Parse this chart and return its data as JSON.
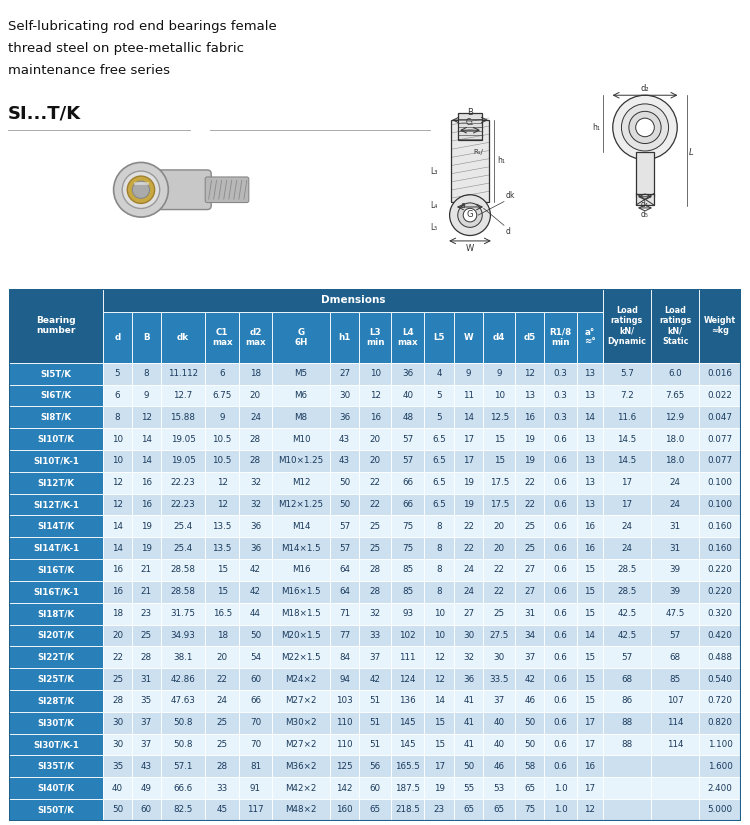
{
  "title_lines": [
    "Self-lubricating rod end bearings female",
    "thread steel on ptee-metallic fabric",
    "maintenance free series"
  ],
  "title_bold": "SI...T/K",
  "header_bg": "#1f5f8b",
  "header_fg": "#ffffff",
  "subheader_bg": "#2980b9",
  "row_even_bg": "#cce0f0",
  "row_odd_bg": "#e8f4fb",
  "text_color": "#1a3a5c",
  "dimensions_span_label": "Dmensions",
  "col_headers": [
    "Bearing\nnumber",
    "d",
    "B",
    "dk",
    "C1\nmax",
    "d2\nmax",
    "G\n6H",
    "h1",
    "L3\nmin",
    "L4\nmax",
    "L5",
    "W",
    "d4",
    "d5",
    "R1/8\nmin",
    "a°\n≈°",
    "Load\nratings\nkN/\nDynamic",
    "Load\nratings\nkN/\nStatic",
    "Weight\n≈kg"
  ],
  "rows": [
    [
      "SI5T/K",
      "5",
      "8",
      "11.112",
      "6",
      "18",
      "M5",
      "27",
      "10",
      "36",
      "4",
      "9",
      "9",
      "12",
      "0.3",
      "13",
      "5.7",
      "6.0",
      "0.016"
    ],
    [
      "SI6T/K",
      "6",
      "9",
      "12.7",
      "6.75",
      "20",
      "M6",
      "30",
      "12",
      "40",
      "5",
      "11",
      "10",
      "13",
      "0.3",
      "13",
      "7.2",
      "7.65",
      "0.022"
    ],
    [
      "SI8T/K",
      "8",
      "12",
      "15.88",
      "9",
      "24",
      "M8",
      "36",
      "16",
      "48",
      "5",
      "14",
      "12.5",
      "16",
      "0.3",
      "14",
      "11.6",
      "12.9",
      "0.047"
    ],
    [
      "SI10T/K",
      "10",
      "14",
      "19.05",
      "10.5",
      "28",
      "M10",
      "43",
      "20",
      "57",
      "6.5",
      "17",
      "15",
      "19",
      "0.6",
      "13",
      "14.5",
      "18.0",
      "0.077"
    ],
    [
      "SI10T/K-1",
      "10",
      "14",
      "19.05",
      "10.5",
      "28",
      "M10×1.25",
      "43",
      "20",
      "57",
      "6.5",
      "17",
      "15",
      "19",
      "0.6",
      "13",
      "14.5",
      "18.0",
      "0.077"
    ],
    [
      "SI12T/K",
      "12",
      "16",
      "22.23",
      "12",
      "32",
      "M12",
      "50",
      "22",
      "66",
      "6.5",
      "19",
      "17.5",
      "22",
      "0.6",
      "13",
      "17",
      "24",
      "0.100"
    ],
    [
      "SI12T/K-1",
      "12",
      "16",
      "22.23",
      "12",
      "32",
      "M12×1.25",
      "50",
      "22",
      "66",
      "6.5",
      "19",
      "17.5",
      "22",
      "0.6",
      "13",
      "17",
      "24",
      "0.100"
    ],
    [
      "SI14T/K",
      "14",
      "19",
      "25.4",
      "13.5",
      "36",
      "M14",
      "57",
      "25",
      "75",
      "8",
      "22",
      "20",
      "25",
      "0.6",
      "16",
      "24",
      "31",
      "0.160"
    ],
    [
      "SI14T/K-1",
      "14",
      "19",
      "25.4",
      "13.5",
      "36",
      "M14×1.5",
      "57",
      "25",
      "75",
      "8",
      "22",
      "20",
      "25",
      "0.6",
      "16",
      "24",
      "31",
      "0.160"
    ],
    [
      "SI16T/K",
      "16",
      "21",
      "28.58",
      "15",
      "42",
      "M16",
      "64",
      "28",
      "85",
      "8",
      "24",
      "22",
      "27",
      "0.6",
      "15",
      "28.5",
      "39",
      "0.220"
    ],
    [
      "SI16T/K-1",
      "16",
      "21",
      "28.58",
      "15",
      "42",
      "M16×1.5",
      "64",
      "28",
      "85",
      "8",
      "24",
      "22",
      "27",
      "0.6",
      "15",
      "28.5",
      "39",
      "0.220"
    ],
    [
      "SI18T/K",
      "18",
      "23",
      "31.75",
      "16.5",
      "44",
      "M18×1.5",
      "71",
      "32",
      "93",
      "10",
      "27",
      "25",
      "31",
      "0.6",
      "15",
      "42.5",
      "47.5",
      "0.320"
    ],
    [
      "SI20T/K",
      "20",
      "25",
      "34.93",
      "18",
      "50",
      "M20×1.5",
      "77",
      "33",
      "102",
      "10",
      "30",
      "27.5",
      "34",
      "0.6",
      "14",
      "42.5",
      "57",
      "0.420"
    ],
    [
      "SI22T/K",
      "22",
      "28",
      "38.1",
      "20",
      "54",
      "M22×1.5",
      "84",
      "37",
      "111",
      "12",
      "32",
      "30",
      "37",
      "0.6",
      "15",
      "57",
      "68",
      "0.488"
    ],
    [
      "SI25T/K",
      "25",
      "31",
      "42.86",
      "22",
      "60",
      "M24×2",
      "94",
      "42",
      "124",
      "12",
      "36",
      "33.5",
      "42",
      "0.6",
      "15",
      "68",
      "85",
      "0.540"
    ],
    [
      "SI28T/K",
      "28",
      "35",
      "47.63",
      "24",
      "66",
      "M27×2",
      "103",
      "51",
      "136",
      "14",
      "41",
      "37",
      "46",
      "0.6",
      "15",
      "86",
      "107",
      "0.720"
    ],
    [
      "SI30T/K",
      "30",
      "37",
      "50.8",
      "25",
      "70",
      "M30×2",
      "110",
      "51",
      "145",
      "15",
      "41",
      "40",
      "50",
      "0.6",
      "17",
      "88",
      "114",
      "0.820"
    ],
    [
      "SI30T/K-1",
      "30",
      "37",
      "50.8",
      "25",
      "70",
      "M27×2",
      "110",
      "51",
      "145",
      "15",
      "41",
      "40",
      "50",
      "0.6",
      "17",
      "88",
      "114",
      "1.100"
    ],
    [
      "SI35T/K",
      "35",
      "43",
      "57.1",
      "28",
      "81",
      "M36×2",
      "125",
      "56",
      "165.5",
      "17",
      "50",
      "46",
      "58",
      "0.6",
      "16",
      "",
      "",
      "1.600"
    ],
    [
      "SI40T/K",
      "40",
      "49",
      "66.6",
      "33",
      "91",
      "M42×2",
      "142",
      "60",
      "187.5",
      "19",
      "55",
      "53",
      "65",
      "1.0",
      "17",
      "",
      "",
      "2.400"
    ],
    [
      "SI50T/K",
      "50",
      "60",
      "82.5",
      "45",
      "117",
      "M48×2",
      "160",
      "65",
      "218.5",
      "23",
      "65",
      "65",
      "75",
      "1.0",
      "12",
      "",
      "",
      "5.000"
    ]
  ],
  "col_widths_rel": [
    1.8,
    0.55,
    0.55,
    0.85,
    0.65,
    0.62,
    1.12,
    0.55,
    0.62,
    0.62,
    0.58,
    0.55,
    0.62,
    0.55,
    0.62,
    0.5,
    0.92,
    0.92,
    0.8
  ]
}
